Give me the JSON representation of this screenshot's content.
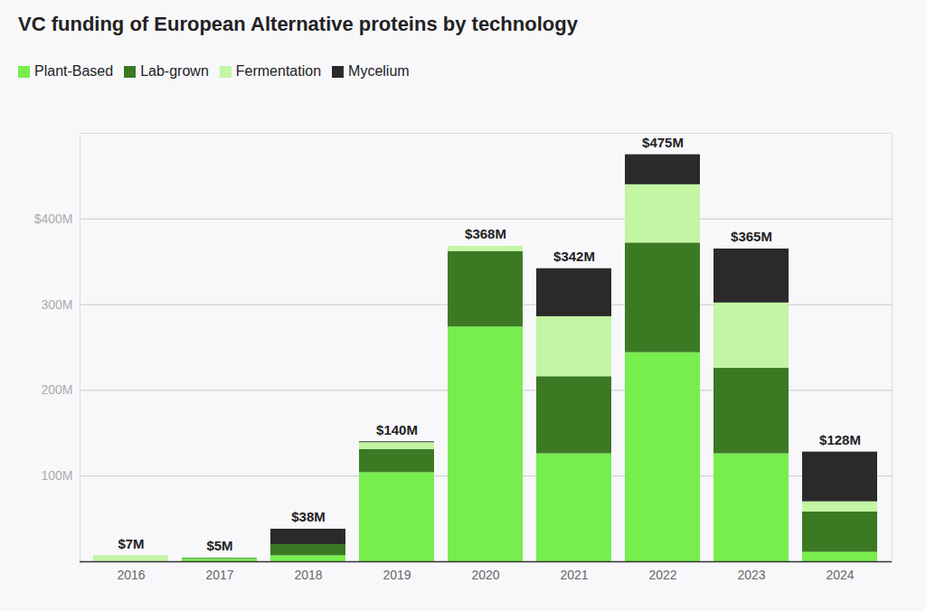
{
  "chart_data": {
    "type": "bar",
    "title": "VC funding of European Alternative proteins by technology",
    "categories": [
      "2016",
      "2017",
      "2018",
      "2019",
      "2020",
      "2021",
      "2022",
      "2023",
      "2024"
    ],
    "series": [
      {
        "name": "Plant-Based",
        "color": "#78ee4e",
        "values": [
          0,
          3,
          7,
          104,
          274,
          126,
          244,
          126,
          11
        ]
      },
      {
        "name": "Lab-grown",
        "color": "#3b7a22",
        "values": [
          0,
          1,
          13,
          27,
          88,
          90,
          128,
          100,
          47
        ]
      },
      {
        "name": "Fermentation",
        "color": "#c2f5a4",
        "values": [
          7,
          1,
          0,
          8,
          6,
          70,
          68,
          76,
          12
        ]
      },
      {
        "name": "Mycelium",
        "color": "#2a2a2a",
        "values": [
          0,
          0,
          18,
          1,
          0,
          56,
          35,
          63,
          58
        ]
      }
    ],
    "totals": [
      7,
      5,
      38,
      140,
      368,
      342,
      475,
      365,
      128
    ],
    "total_labels": [
      "$7M",
      "$5M",
      "$38M",
      "$140M",
      "$368M",
      "$342M",
      "$475M",
      "$365M",
      "$128M"
    ],
    "ylim": [
      0,
      500
    ],
    "yticks": [
      {
        "value": 100,
        "label": "100M"
      },
      {
        "value": 200,
        "label": "200M"
      },
      {
        "value": 300,
        "label": "300M"
      },
      {
        "value": 400,
        "label": "$400M"
      }
    ],
    "grid": true,
    "stacked": true,
    "legend": "top-left"
  }
}
